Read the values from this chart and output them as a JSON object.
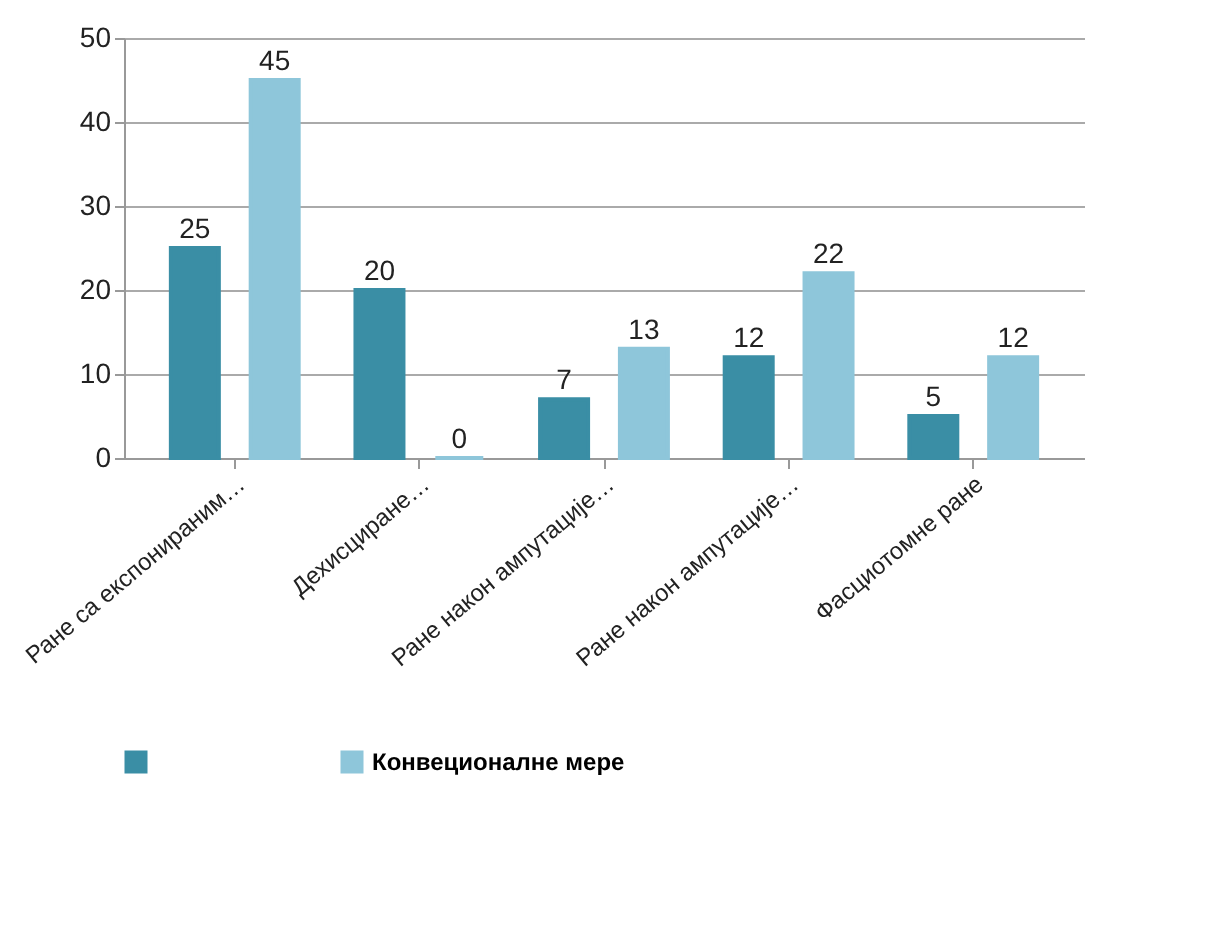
{
  "chart_data": {
    "type": "bar",
    "categories": [
      "Ране са експонираним…",
      "Дехисциране…",
      "Ране након ампутације…",
      "Ране након ампутације…",
      "Фасциотомне ране"
    ],
    "series": [
      {
        "color": "#3a8ea5",
        "values": [
          25,
          20,
          7,
          12,
          5
        ]
      },
      {
        "name": "Конвеционалне мере",
        "color": "#8ec6da",
        "values": [
          45,
          0,
          13,
          22,
          12
        ]
      }
    ],
    "ylim": [
      0,
      50
    ],
    "yticks": [
      0,
      10,
      20,
      30,
      40,
      50
    ],
    "grid": "y",
    "legend": "bottom",
    "data_labels": true
  }
}
